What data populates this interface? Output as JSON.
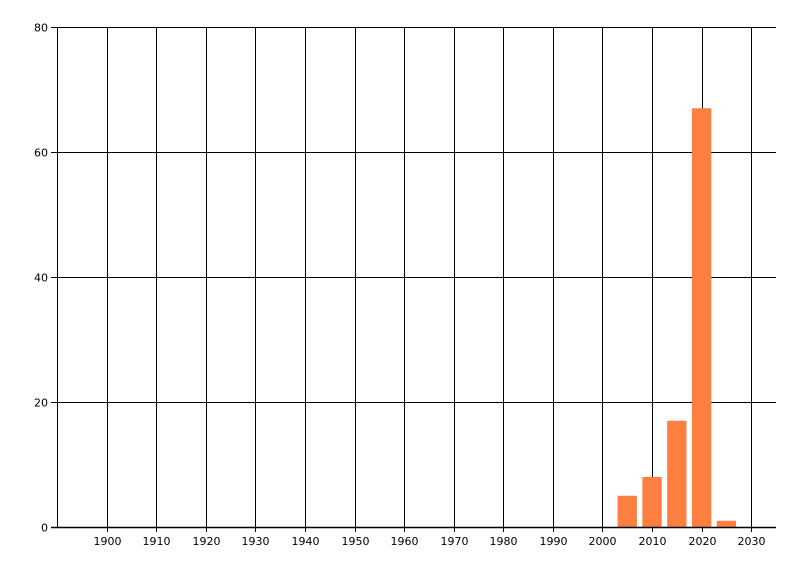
{
  "chart_data": {
    "type": "bar",
    "title": "",
    "xlabel": "",
    "ylabel": "",
    "x": [
      2005,
      2010,
      2015,
      2020,
      2025
    ],
    "values": [
      5,
      8,
      17,
      67,
      1
    ],
    "bar_width_years": 3.9,
    "xlim": [
      1890,
      2035
    ],
    "ylim": [
      0,
      80
    ],
    "x_ticks": [
      1900,
      1910,
      1920,
      1930,
      1940,
      1950,
      1960,
      1970,
      1980,
      1990,
      2000,
      2010,
      2020,
      2030
    ],
    "y_ticks": [
      0,
      20,
      40,
      60,
      80
    ],
    "grid": true,
    "legend": "none",
    "colors": {
      "bar": "#FF7F41",
      "grid": "#000000"
    }
  }
}
